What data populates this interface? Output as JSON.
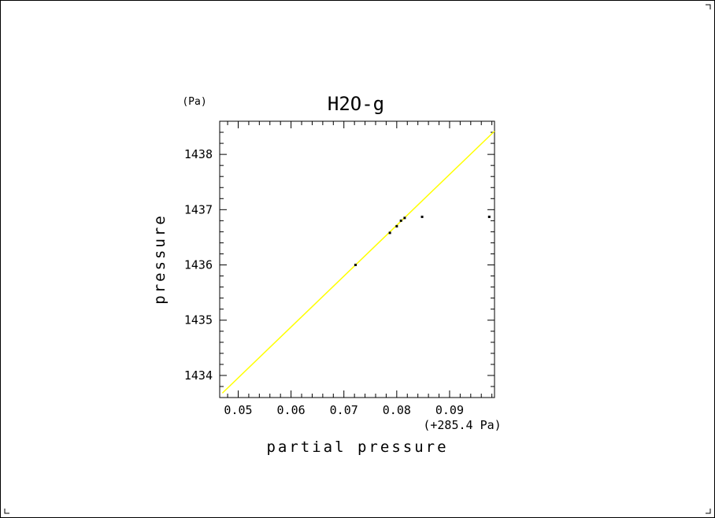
{
  "chart_data": {
    "type": "scatter",
    "title": "H2O-g",
    "xlabel": "partial pressure",
    "ylabel": "pressure",
    "x_unit_label": "(+285.4 Pa)",
    "y_unit_label": "(Pa)",
    "xlim": [
      0.0465,
      0.0985
    ],
    "ylim": [
      1433.6,
      1438.6
    ],
    "x_ticks": [
      "0.05",
      "0.06",
      "0.07",
      "0.08",
      "0.09"
    ],
    "y_ticks": [
      "1434",
      "1435",
      "1436",
      "1437",
      "1438"
    ],
    "grid": false,
    "points": [
      {
        "x": 0.0722,
        "y": 1436.0
      },
      {
        "x": 0.0787,
        "y": 1436.58
      },
      {
        "x": 0.08,
        "y": 1436.7
      },
      {
        "x": 0.0808,
        "y": 1436.8
      },
      {
        "x": 0.0815,
        "y": 1436.85
      },
      {
        "x": 0.0848,
        "y": 1436.87
      },
      {
        "x": 0.0975,
        "y": 1436.87
      }
    ],
    "fit_line": {
      "x": [
        0.047,
        0.0985
      ],
      "y": [
        1433.68,
        1438.42
      ],
      "color": "#ffff00"
    }
  }
}
